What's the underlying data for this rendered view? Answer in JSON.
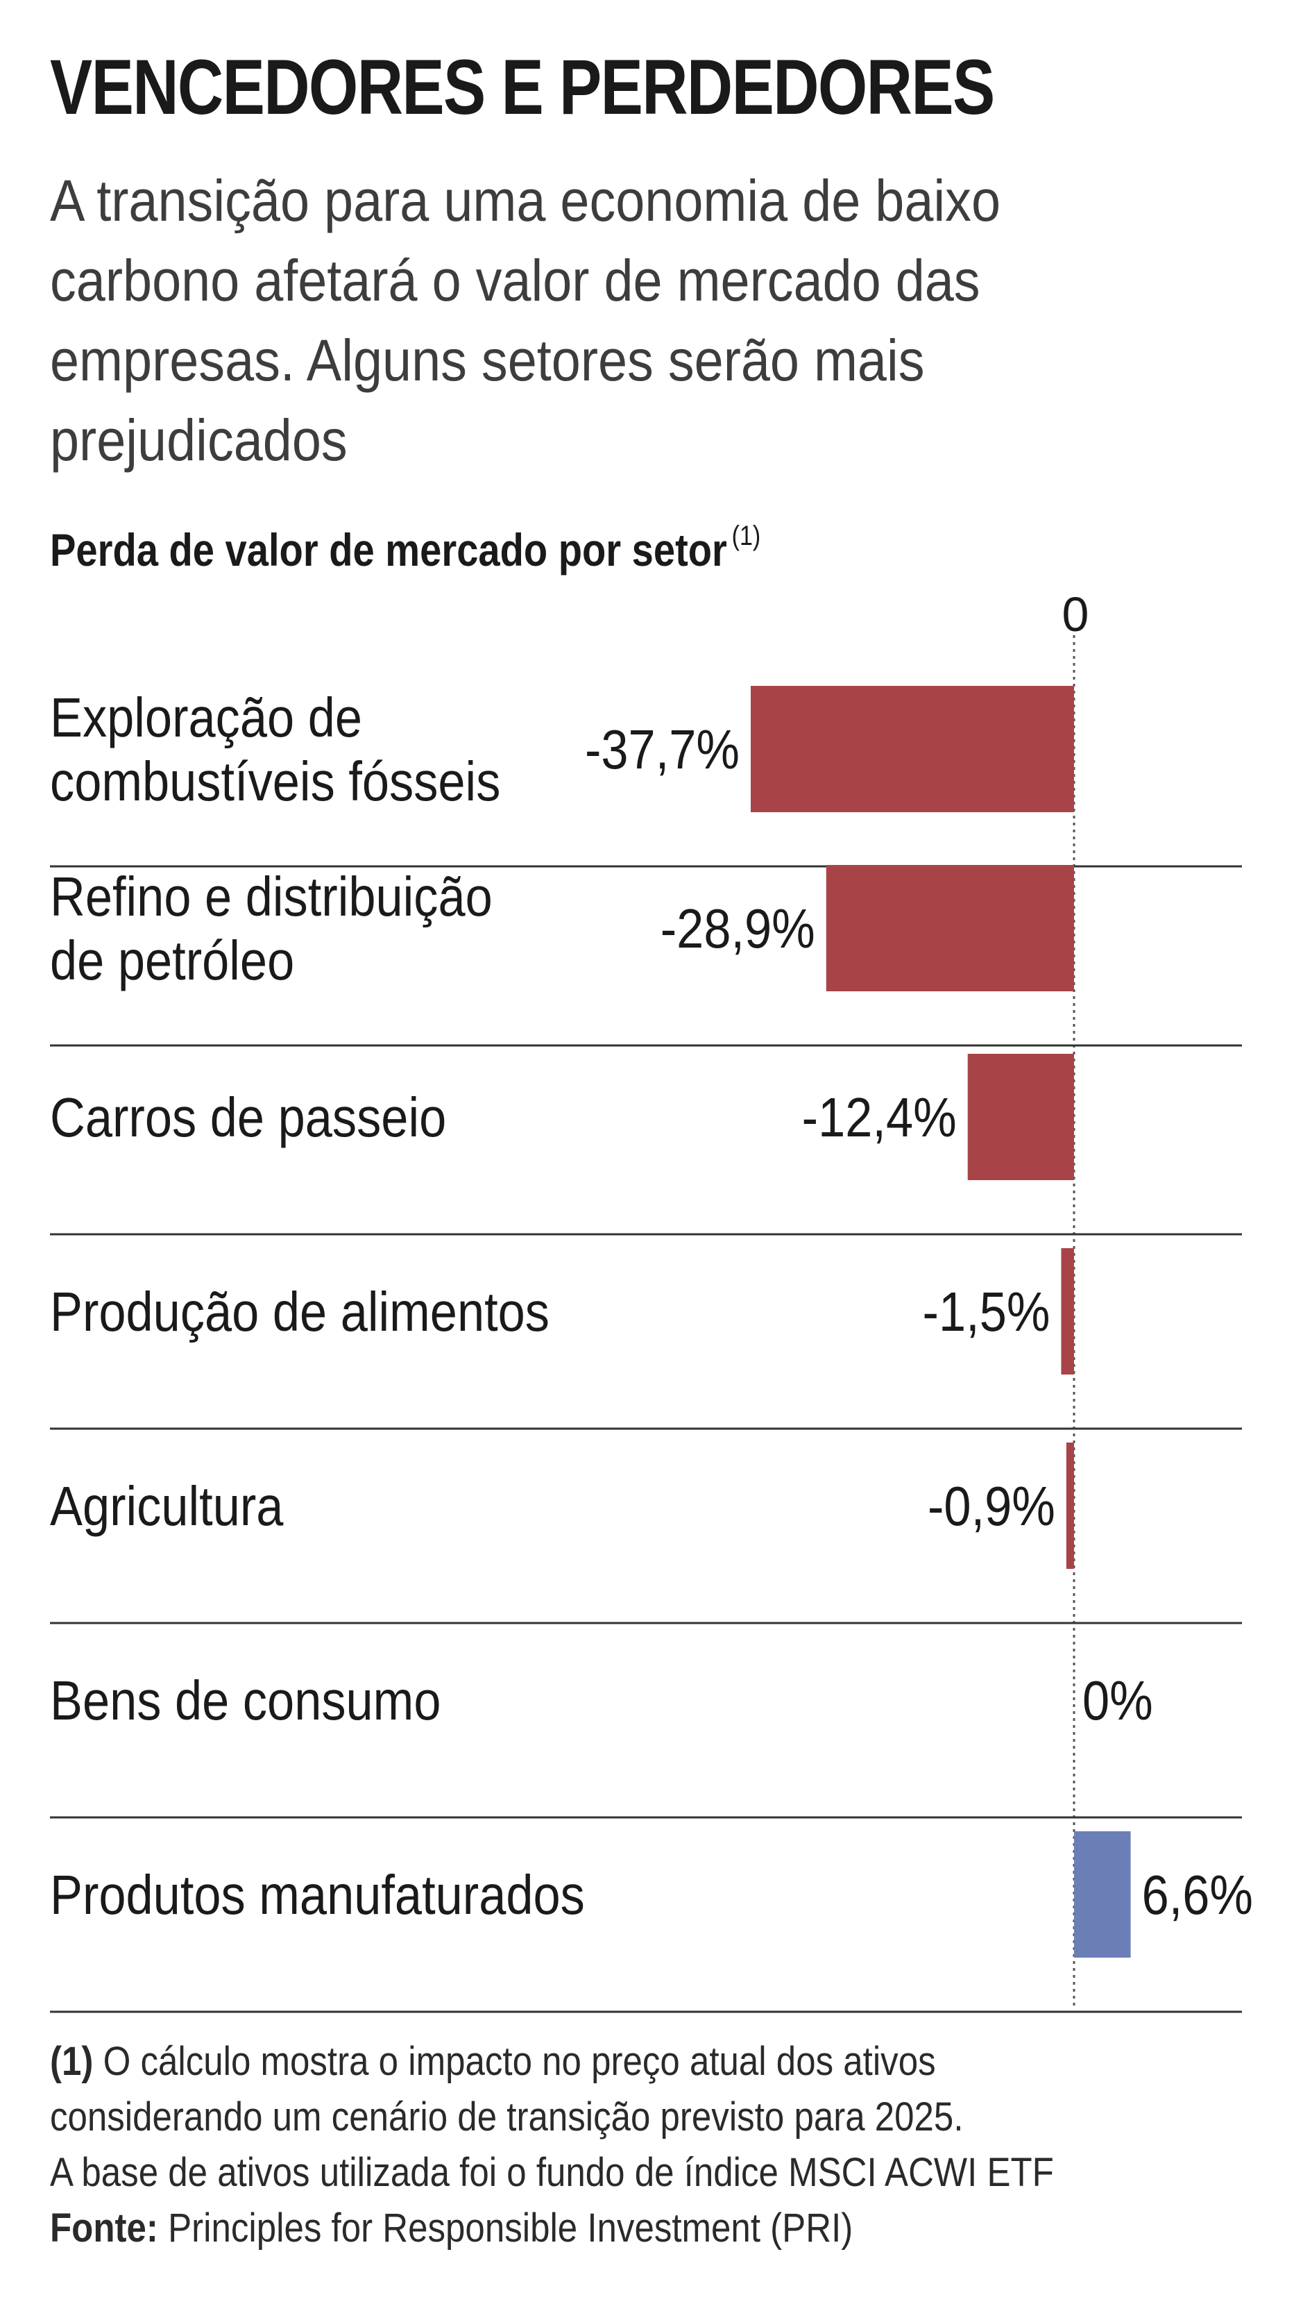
{
  "header": {
    "title": "VENCEDORES E PERDEDORES",
    "subtitle": "A transição para uma economia de baixo carbono afetará o valor de mercado das empresas. Alguns setores serão mais prejudicados"
  },
  "chart_label": {
    "text": "Perda de valor de mercado por setor",
    "superscript": "(1)"
  },
  "chart_data": {
    "type": "bar",
    "orientation": "horizontal",
    "title": "Perda de valor de mercado por setor",
    "categories": [
      [
        "Exploração de",
        "combustíveis fósseis"
      ],
      [
        "Refino e distribuição",
        "de petróleo"
      ],
      [
        "Carros de passeio"
      ],
      [
        "Produção de alimentos"
      ],
      [
        "Agricultura"
      ],
      [
        "Bens de consumo"
      ],
      [
        "Produtos manufaturados"
      ]
    ],
    "values": [
      -37.7,
      -28.9,
      -12.4,
      -1.5,
      -0.9,
      0,
      6.6
    ],
    "value_labels": [
      "-37,7%",
      "-28,9%",
      "-12,4%",
      "-1,5%",
      "-0,9%",
      "0%",
      "6,6%"
    ],
    "zero_label": "0",
    "colors": {
      "negative": "#a84448",
      "positive": "#6b7fb6"
    },
    "xlim": [
      -37.7,
      6.6
    ]
  },
  "footnote": {
    "marker": "(1)",
    "lines": [
      "O cálculo mostra o impacto no preço atual dos ativos",
      "considerando um cenário de transição previsto para 2025.",
      "A base de ativos utilizada foi o fundo de índice MSCI ACWI ETF"
    ],
    "source_label": "Fonte:",
    "source_text": "Principles for Responsible Investment (PRI)"
  }
}
